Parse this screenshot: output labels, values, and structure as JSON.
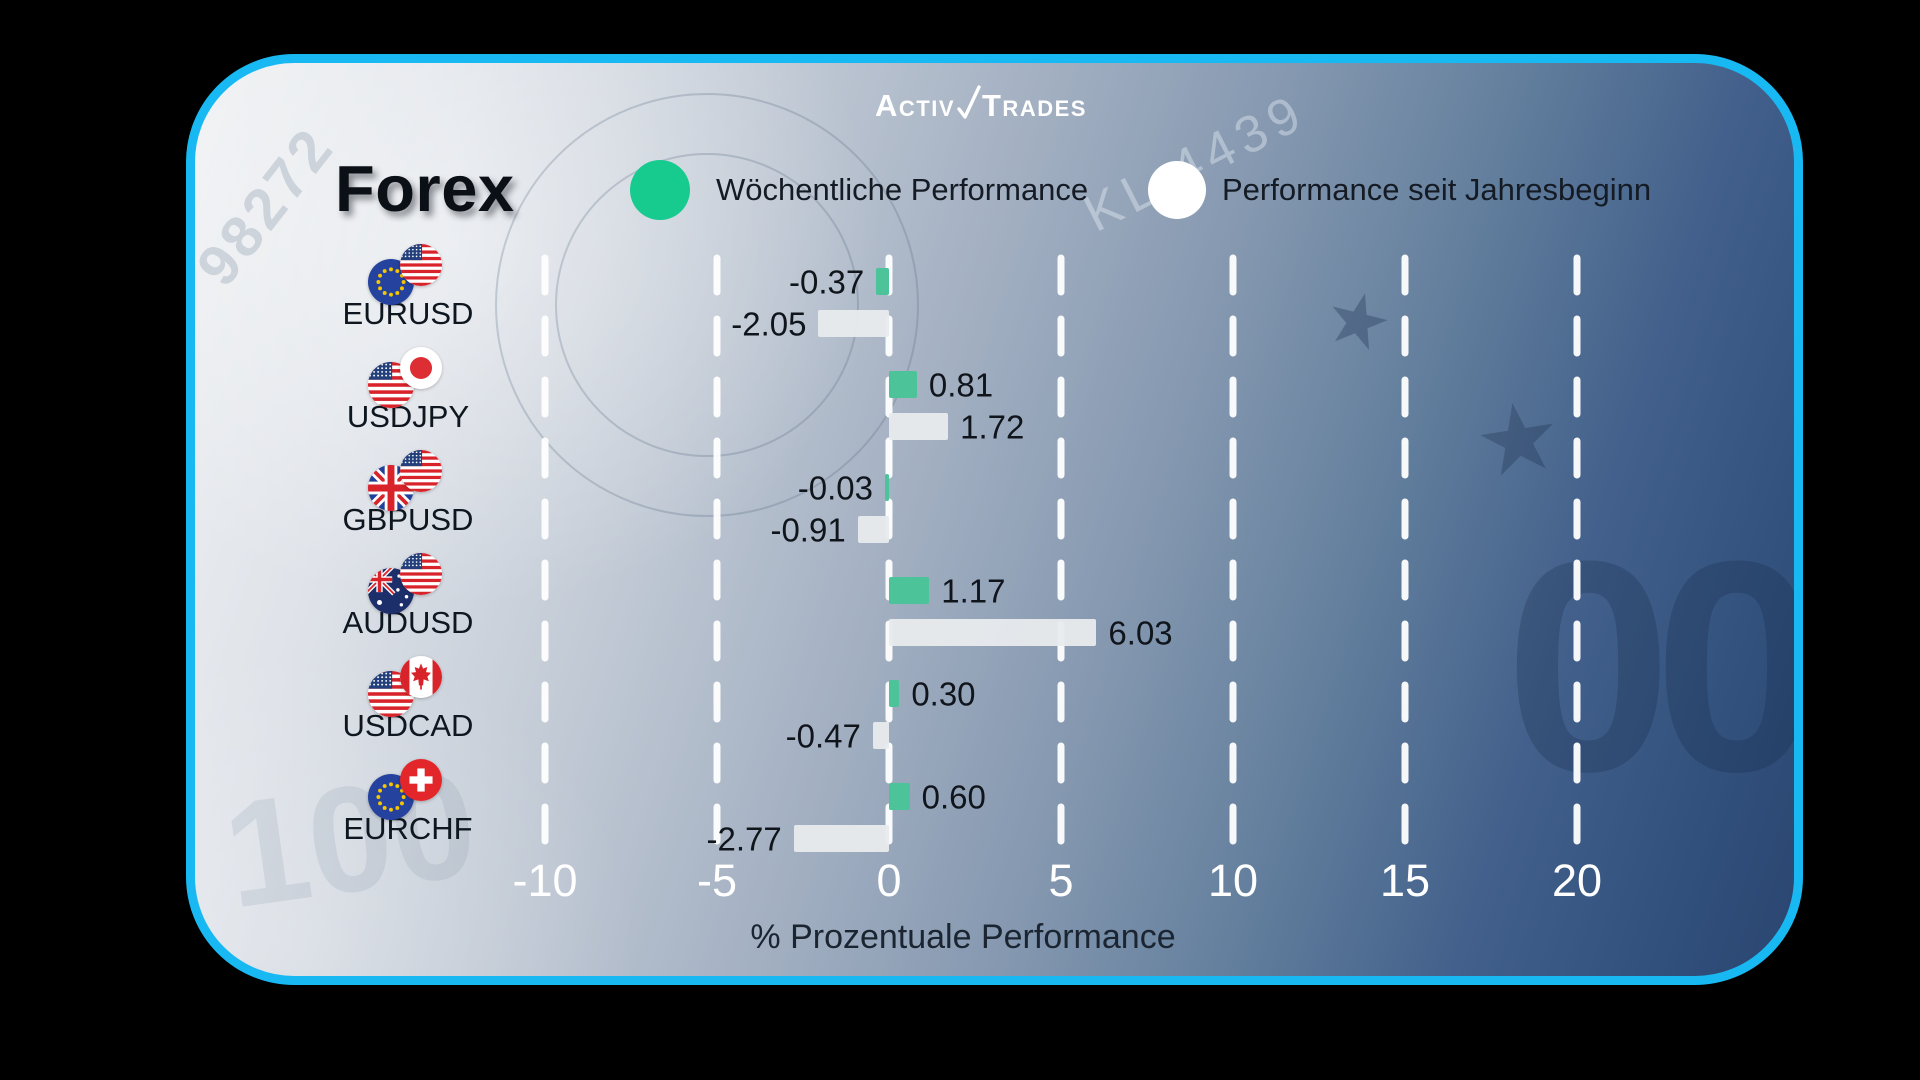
{
  "brand": {
    "part1": "Activ",
    "part2": "Trades"
  },
  "header": {
    "title": "Forex"
  },
  "legend": [
    {
      "label": "Wöchentliche Performance",
      "color": "#17cb8e"
    },
    {
      "label": "Performance seit Jahresbeginn",
      "color": "#ffffff"
    }
  ],
  "background": {
    "serial": "KL 4439",
    "serial_left": "98272",
    "hundred": "100",
    "zeros": "00",
    "star_glyph": "★"
  },
  "colors": {
    "frame_border": "#18b9f2",
    "weekly_bar": "#4cc398",
    "ytd_bar": "#e8ebed",
    "grid_line": "#ffffff",
    "tick_text": "#ffffff",
    "dark_text": "#10151c"
  },
  "chart_data": {
    "type": "bar",
    "orientation": "horizontal",
    "title": "Forex",
    "xlabel": "% Prozentuale Performance",
    "xlim": [
      -10,
      20
    ],
    "xticks": [
      -10,
      -5,
      0,
      5,
      10,
      15,
      20
    ],
    "xtick_labels": [
      "-10",
      "-5",
      "0",
      "5",
      "10",
      "15",
      "20"
    ],
    "grid": "dashed-vertical-white",
    "legend_position": "top",
    "categories": [
      "EURUSD",
      "USDJPY",
      "GBPUSD",
      "AUDUSD",
      "USDCAD",
      "EURCHF"
    ],
    "flags": [
      [
        "eu",
        "us"
      ],
      [
        "us",
        "jp"
      ],
      [
        "gb",
        "us"
      ],
      [
        "au",
        "us"
      ],
      [
        "us",
        "ca"
      ],
      [
        "eu",
        "ch"
      ]
    ],
    "series": [
      {
        "name": "Wöchentliche Performance",
        "color": "#4cc398",
        "values": [
          -0.37,
          0.81,
          -0.03,
          1.17,
          0.3,
          0.6
        ]
      },
      {
        "name": "Performance seit Jahresbeginn",
        "color": "#e8ebed",
        "values": [
          -2.05,
          1.72,
          -0.91,
          6.03,
          -0.47,
          -2.77
        ]
      }
    ],
    "value_labels": [
      [
        "-0.37",
        "-2.05"
      ],
      [
        "0.81",
        "1.72"
      ],
      [
        "-0.03",
        "-0.91"
      ],
      [
        "1.17",
        "6.03"
      ],
      [
        "0.30",
        "-0.47"
      ],
      [
        "0.60",
        "-2.77"
      ]
    ]
  }
}
